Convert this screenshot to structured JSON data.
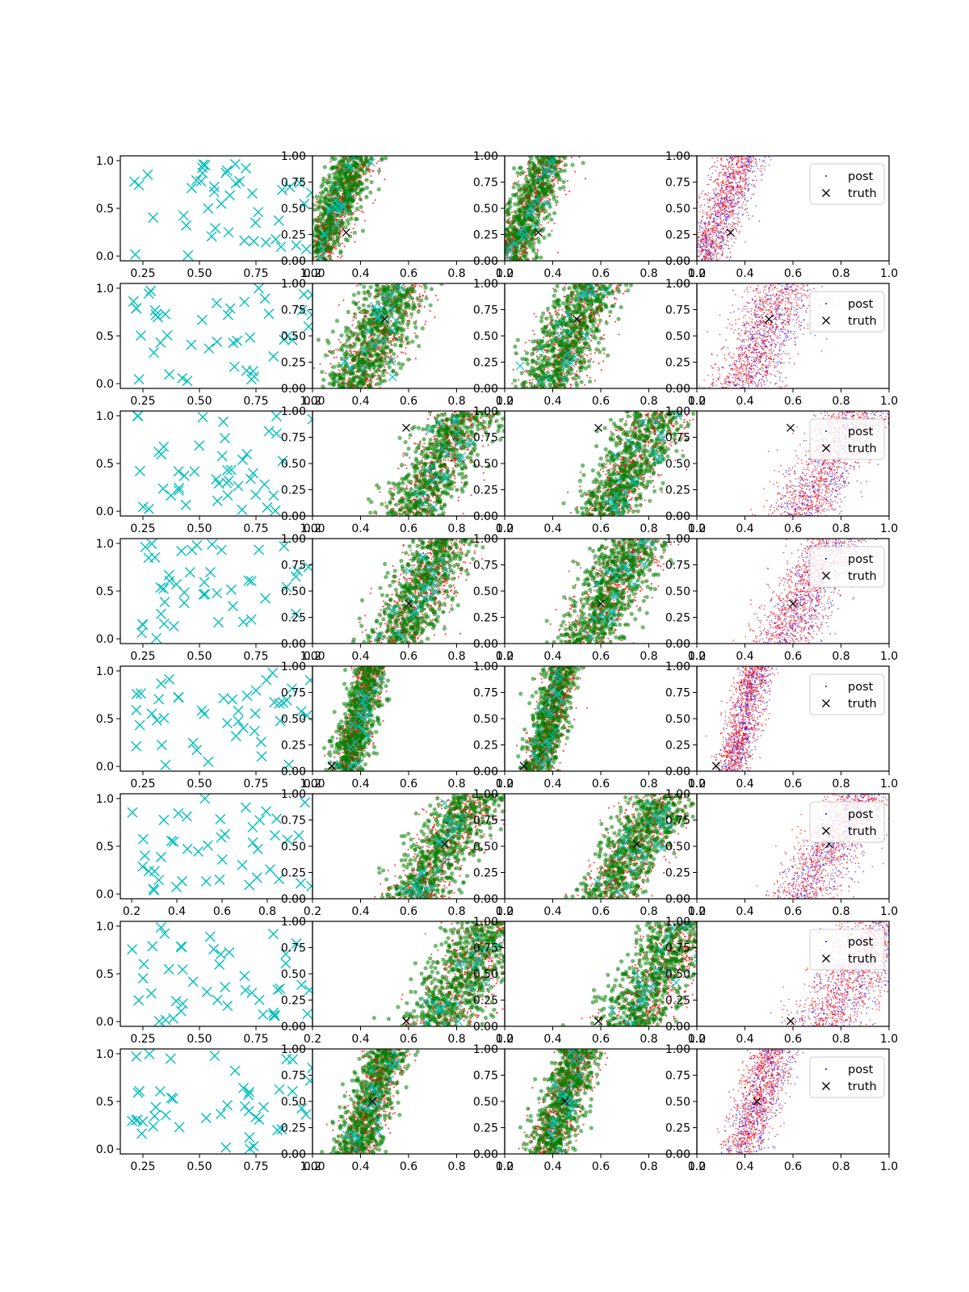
{
  "figure": {
    "background": "#ffffff"
  },
  "colors": {
    "cyan_x": "#00bfbf",
    "post": "#0000ff",
    "red_dots": "#ff0000",
    "green_dots": "#008000",
    "truth": "#000000"
  },
  "legend": {
    "post_label": "post",
    "truth_label": "truth"
  },
  "chart_data": {
    "type": "scatter",
    "description_rows": 8,
    "columns": 4,
    "col0_xticks": [
      [
        "0.25",
        "0.50",
        "0.75",
        "1.00"
      ],
      [
        "0.25",
        "0.50",
        "0.75",
        "1.00"
      ],
      [
        "0.25",
        "0.50",
        "0.75",
        "1.00"
      ],
      [
        "0.25",
        "0.50",
        "0.75",
        "1.00"
      ],
      [
        "0.25",
        "0.50",
        "0.75",
        "1.00"
      ],
      [
        "0.2",
        "0.4",
        "0.6",
        "0.8"
      ],
      [
        "0.25",
        "0.50",
        "0.75"
      ],
      [
        "0.25",
        "0.50",
        "0.75",
        "1.00"
      ]
    ],
    "col0_yticks": [
      "0.0",
      "0.5",
      "1.0"
    ],
    "col0_xlim": [
      0.15,
      1.0
    ],
    "col0_ylim": [
      -0.05,
      1.05
    ],
    "post_xticks": [
      "0.2",
      "0.4",
      "0.6",
      "0.8",
      "1.0"
    ],
    "post_yticks": [
      "0.00",
      "0.25",
      "0.50",
      "0.75",
      "1.00"
    ],
    "post_xlim": [
      0.2,
      1.0
    ],
    "post_ylim": [
      0.0,
      1.0
    ],
    "legend_rows": [
      0,
      1,
      2,
      3,
      4,
      5,
      6,
      7
    ],
    "truth": [
      {
        "x": 0.34,
        "y": 0.27
      },
      {
        "x": 0.5,
        "y": 0.66
      },
      {
        "x": 0.59,
        "y": 0.84
      },
      {
        "x": 0.6,
        "y": 0.38
      },
      {
        "x": 0.28,
        "y": 0.05
      },
      {
        "x": 0.75,
        "y": 0.52
      },
      {
        "x": 0.59,
        "y": 0.05
      },
      {
        "x": 0.45,
        "y": 0.5
      }
    ],
    "bands": [
      {
        "xb": 0.22,
        "xt": 0.39,
        "w": 0.08
      },
      {
        "xb": 0.38,
        "xt": 0.57,
        "w": 0.12
      },
      {
        "xb": 0.62,
        "xt": 0.85,
        "w": 0.12
      },
      {
        "xb": 0.55,
        "xt": 0.76,
        "w": 0.12
      },
      {
        "xb": 0.34,
        "xt": 0.45,
        "w": 0.06
      },
      {
        "xb": 0.63,
        "xt": 0.88,
        "w": 0.12
      },
      {
        "xb": 0.73,
        "xt": 0.97,
        "w": 0.14
      },
      {
        "xb": 0.38,
        "xt": 0.52,
        "w": 0.08
      }
    ],
    "x_marker_counts": [
      45,
      45,
      45,
      45,
      45,
      45,
      45,
      45
    ]
  }
}
